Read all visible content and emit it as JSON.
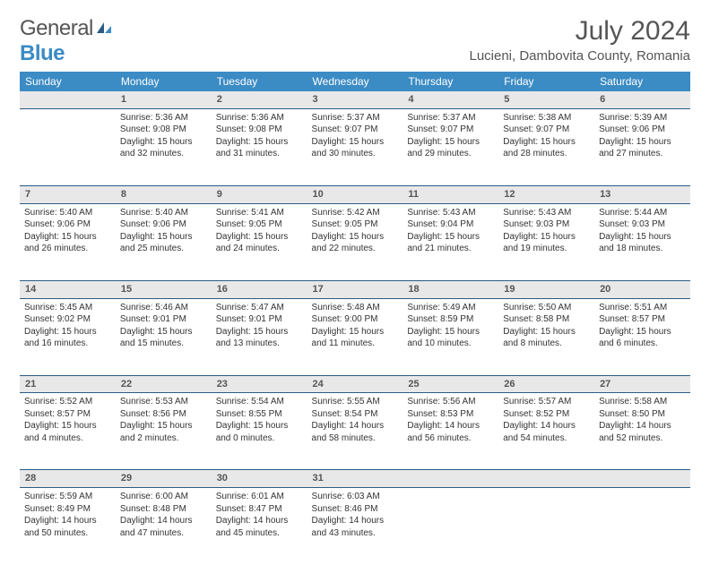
{
  "brand": {
    "part1": "General",
    "part2": "Blue"
  },
  "title": "July 2024",
  "location": "Lucieni, Dambovita County, Romania",
  "colors": {
    "header_bg": "#3b8bc4",
    "border": "#2a5c85",
    "daynum_bg": "#e8e8e8",
    "text": "#333333",
    "brand_blue": "#3b8bc4"
  },
  "day_headers": [
    "Sunday",
    "Monday",
    "Tuesday",
    "Wednesday",
    "Thursday",
    "Friday",
    "Saturday"
  ],
  "weeks": [
    {
      "nums": [
        "",
        "1",
        "2",
        "3",
        "4",
        "5",
        "6"
      ],
      "cells": [
        null,
        {
          "sunrise": "5:36 AM",
          "sunset": "9:08 PM",
          "dl1": "Daylight: 15 hours",
          "dl2": "and 32 minutes."
        },
        {
          "sunrise": "5:36 AM",
          "sunset": "9:08 PM",
          "dl1": "Daylight: 15 hours",
          "dl2": "and 31 minutes."
        },
        {
          "sunrise": "5:37 AM",
          "sunset": "9:07 PM",
          "dl1": "Daylight: 15 hours",
          "dl2": "and 30 minutes."
        },
        {
          "sunrise": "5:37 AM",
          "sunset": "9:07 PM",
          "dl1": "Daylight: 15 hours",
          "dl2": "and 29 minutes."
        },
        {
          "sunrise": "5:38 AM",
          "sunset": "9:07 PM",
          "dl1": "Daylight: 15 hours",
          "dl2": "and 28 minutes."
        },
        {
          "sunrise": "5:39 AM",
          "sunset": "9:06 PM",
          "dl1": "Daylight: 15 hours",
          "dl2": "and 27 minutes."
        }
      ]
    },
    {
      "nums": [
        "7",
        "8",
        "9",
        "10",
        "11",
        "12",
        "13"
      ],
      "cells": [
        {
          "sunrise": "5:40 AM",
          "sunset": "9:06 PM",
          "dl1": "Daylight: 15 hours",
          "dl2": "and 26 minutes."
        },
        {
          "sunrise": "5:40 AM",
          "sunset": "9:06 PM",
          "dl1": "Daylight: 15 hours",
          "dl2": "and 25 minutes."
        },
        {
          "sunrise": "5:41 AM",
          "sunset": "9:05 PM",
          "dl1": "Daylight: 15 hours",
          "dl2": "and 24 minutes."
        },
        {
          "sunrise": "5:42 AM",
          "sunset": "9:05 PM",
          "dl1": "Daylight: 15 hours",
          "dl2": "and 22 minutes."
        },
        {
          "sunrise": "5:43 AM",
          "sunset": "9:04 PM",
          "dl1": "Daylight: 15 hours",
          "dl2": "and 21 minutes."
        },
        {
          "sunrise": "5:43 AM",
          "sunset": "9:03 PM",
          "dl1": "Daylight: 15 hours",
          "dl2": "and 19 minutes."
        },
        {
          "sunrise": "5:44 AM",
          "sunset": "9:03 PM",
          "dl1": "Daylight: 15 hours",
          "dl2": "and 18 minutes."
        }
      ]
    },
    {
      "nums": [
        "14",
        "15",
        "16",
        "17",
        "18",
        "19",
        "20"
      ],
      "cells": [
        {
          "sunrise": "5:45 AM",
          "sunset": "9:02 PM",
          "dl1": "Daylight: 15 hours",
          "dl2": "and 16 minutes."
        },
        {
          "sunrise": "5:46 AM",
          "sunset": "9:01 PM",
          "dl1": "Daylight: 15 hours",
          "dl2": "and 15 minutes."
        },
        {
          "sunrise": "5:47 AM",
          "sunset": "9:01 PM",
          "dl1": "Daylight: 15 hours",
          "dl2": "and 13 minutes."
        },
        {
          "sunrise": "5:48 AM",
          "sunset": "9:00 PM",
          "dl1": "Daylight: 15 hours",
          "dl2": "and 11 minutes."
        },
        {
          "sunrise": "5:49 AM",
          "sunset": "8:59 PM",
          "dl1": "Daylight: 15 hours",
          "dl2": "and 10 minutes."
        },
        {
          "sunrise": "5:50 AM",
          "sunset": "8:58 PM",
          "dl1": "Daylight: 15 hours",
          "dl2": "and 8 minutes."
        },
        {
          "sunrise": "5:51 AM",
          "sunset": "8:57 PM",
          "dl1": "Daylight: 15 hours",
          "dl2": "and 6 minutes."
        }
      ]
    },
    {
      "nums": [
        "21",
        "22",
        "23",
        "24",
        "25",
        "26",
        "27"
      ],
      "cells": [
        {
          "sunrise": "5:52 AM",
          "sunset": "8:57 PM",
          "dl1": "Daylight: 15 hours",
          "dl2": "and 4 minutes."
        },
        {
          "sunrise": "5:53 AM",
          "sunset": "8:56 PM",
          "dl1": "Daylight: 15 hours",
          "dl2": "and 2 minutes."
        },
        {
          "sunrise": "5:54 AM",
          "sunset": "8:55 PM",
          "dl1": "Daylight: 15 hours",
          "dl2": "and 0 minutes."
        },
        {
          "sunrise": "5:55 AM",
          "sunset": "8:54 PM",
          "dl1": "Daylight: 14 hours",
          "dl2": "and 58 minutes."
        },
        {
          "sunrise": "5:56 AM",
          "sunset": "8:53 PM",
          "dl1": "Daylight: 14 hours",
          "dl2": "and 56 minutes."
        },
        {
          "sunrise": "5:57 AM",
          "sunset": "8:52 PM",
          "dl1": "Daylight: 14 hours",
          "dl2": "and 54 minutes."
        },
        {
          "sunrise": "5:58 AM",
          "sunset": "8:50 PM",
          "dl1": "Daylight: 14 hours",
          "dl2": "and 52 minutes."
        }
      ]
    },
    {
      "nums": [
        "28",
        "29",
        "30",
        "31",
        "",
        "",
        ""
      ],
      "cells": [
        {
          "sunrise": "5:59 AM",
          "sunset": "8:49 PM",
          "dl1": "Daylight: 14 hours",
          "dl2": "and 50 minutes."
        },
        {
          "sunrise": "6:00 AM",
          "sunset": "8:48 PM",
          "dl1": "Daylight: 14 hours",
          "dl2": "and 47 minutes."
        },
        {
          "sunrise": "6:01 AM",
          "sunset": "8:47 PM",
          "dl1": "Daylight: 14 hours",
          "dl2": "and 45 minutes."
        },
        {
          "sunrise": "6:03 AM",
          "sunset": "8:46 PM",
          "dl1": "Daylight: 14 hours",
          "dl2": "and 43 minutes."
        },
        null,
        null,
        null
      ]
    }
  ],
  "labels": {
    "sunrise": "Sunrise: ",
    "sunset": "Sunset: "
  }
}
